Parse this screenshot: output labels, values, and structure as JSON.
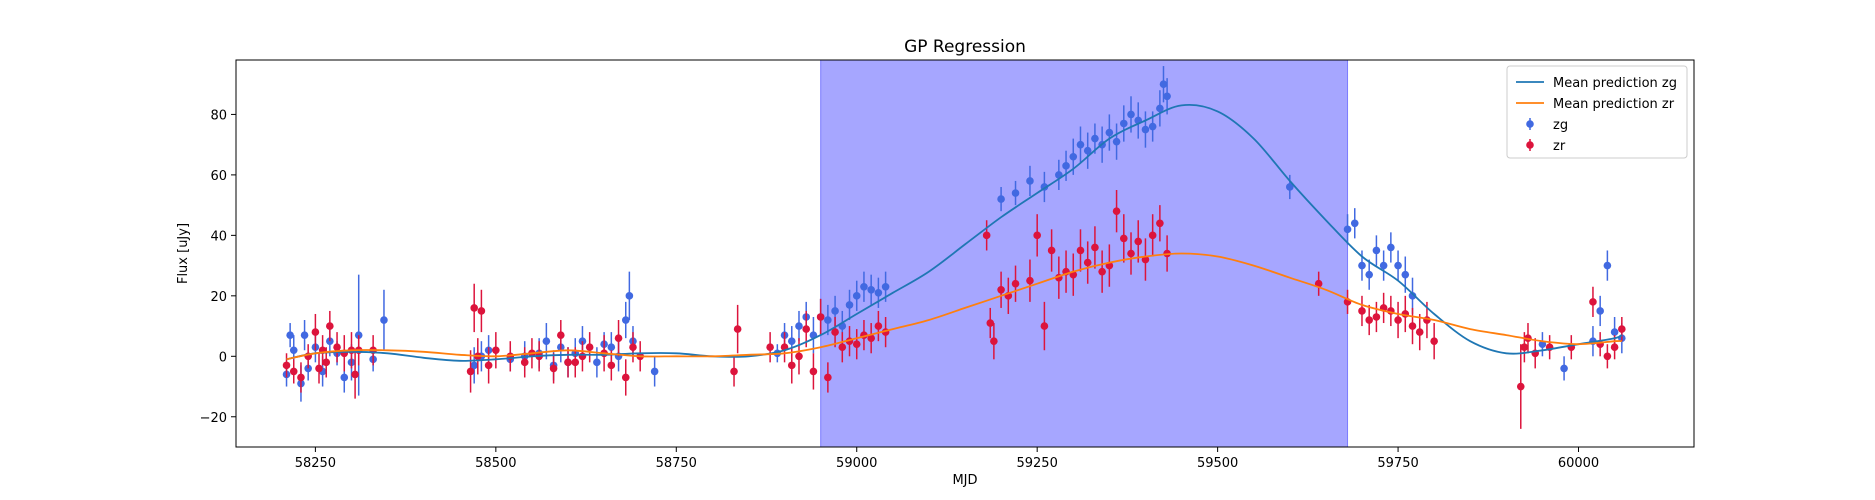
{
  "chart_data": {
    "type": "scatter",
    "title": "GP Regression",
    "xlabel": "MJD",
    "ylabel": "Flux [uJy]",
    "xlim": [
      58140,
      60160
    ],
    "ylim": [
      -30,
      98
    ],
    "xticks": [
      58250,
      58500,
      58750,
      59000,
      59250,
      59500,
      59750,
      60000
    ],
    "yticks": [
      -20,
      0,
      20,
      40,
      60,
      80
    ],
    "grid": false,
    "legend_position": "top-right",
    "legend": [
      {
        "label": "Mean prediction zg",
        "kind": "line",
        "color": "#1f77b4"
      },
      {
        "label": "Mean prediction zr",
        "kind": "line",
        "color": "#ff7f0e"
      },
      {
        "label": "zg",
        "kind": "errorbar",
        "color": "#4169e1"
      },
      {
        "label": "zr",
        "kind": "errorbar",
        "color": "#dc143c"
      }
    ],
    "shaded_region": {
      "x0": 58950,
      "x1": 59680,
      "color": "#0000ff",
      "alpha": 0.35
    },
    "series": [
      {
        "name": "Mean prediction zg",
        "kind": "line",
        "color": "#1f77b4",
        "x": [
          58210,
          58250,
          58300,
          58350,
          58400,
          58450,
          58500,
          58550,
          58600,
          58650,
          58700,
          58750,
          58800,
          58850,
          58900,
          58950,
          59000,
          59050,
          59100,
          59150,
          59200,
          59250,
          59300,
          59350,
          59400,
          59450,
          59500,
          59550,
          59600,
          59650,
          59700,
          59750,
          59800,
          59850,
          59900,
          59950,
          60000,
          60050,
          60060
        ],
        "y": [
          -1,
          1,
          1.5,
          1,
          -0.5,
          -1.5,
          -1,
          0,
          0.5,
          0.5,
          1,
          1,
          0,
          0,
          2,
          7,
          14,
          21,
          28,
          37,
          46,
          54,
          62,
          72,
          78,
          83,
          81,
          72,
          58,
          45,
          33,
          25,
          14,
          5,
          1,
          2,
          4,
          6,
          7
        ]
      },
      {
        "name": "Mean prediction zr",
        "kind": "line",
        "color": "#ff7f0e",
        "x": [
          58210,
          58250,
          58300,
          58350,
          58400,
          58450,
          58500,
          58550,
          58600,
          58650,
          58700,
          58750,
          58800,
          58850,
          58900,
          58950,
          59000,
          59050,
          59100,
          59150,
          59200,
          59250,
          59300,
          59350,
          59400,
          59450,
          59500,
          59550,
          59600,
          59650,
          59700,
          59750,
          59800,
          59850,
          59900,
          59950,
          60000,
          60050,
          60060
        ],
        "y": [
          -1,
          1,
          2,
          2,
          1.5,
          0.5,
          0,
          1,
          2,
          1,
          0,
          0,
          0,
          0.5,
          1,
          3,
          6,
          9,
          12,
          16,
          20,
          24,
          28,
          31,
          33,
          34,
          33,
          30,
          26,
          22,
          17,
          14,
          12,
          9,
          7,
          5,
          4,
          5,
          5
        ]
      },
      {
        "name": "zg",
        "kind": "errorbar",
        "color": "#4169e1",
        "x": [
          58210,
          58215,
          58220,
          58230,
          58235,
          58240,
          58250,
          58260,
          58270,
          58280,
          58290,
          58300,
          58310,
          58330,
          58345,
          58470,
          58480,
          58490,
          58520,
          58540,
          58560,
          58570,
          58580,
          58590,
          58600,
          58610,
          58620,
          58640,
          58650,
          58660,
          58670,
          58680,
          58685,
          58690,
          58720,
          58890,
          58900,
          58910,
          58920,
          58930,
          58940,
          58950,
          58960,
          58970,
          58980,
          58990,
          59000,
          59010,
          59020,
          59030,
          59040,
          59200,
          59220,
          59240,
          59260,
          59280,
          59290,
          59300,
          59310,
          59320,
          59330,
          59340,
          59350,
          59360,
          59370,
          59380,
          59390,
          59400,
          59410,
          59420,
          59425,
          59430,
          59600,
          59680,
          59690,
          59700,
          59710,
          59720,
          59730,
          59740,
          59750,
          59760,
          59770,
          59950,
          59980,
          60020,
          60030,
          60040,
          60050,
          60060
        ],
        "y": [
          -6,
          7,
          2,
          -9,
          7,
          -4,
          3,
          -5,
          5,
          1,
          -7,
          -2,
          7,
          -1,
          12,
          -3,
          0,
          2,
          -1,
          0,
          1,
          5,
          -3,
          3,
          -2,
          1,
          5,
          -2,
          4,
          3,
          0,
          12,
          20,
          5,
          -5,
          1,
          7,
          5,
          10,
          13,
          7,
          13,
          12,
          15,
          10,
          17,
          20,
          23,
          22,
          21,
          23,
          52,
          54,
          58,
          56,
          60,
          63,
          66,
          70,
          68,
          72,
          70,
          74,
          71,
          77,
          80,
          78,
          75,
          76,
          82,
          90,
          86,
          56,
          42,
          44,
          30,
          27,
          35,
          30,
          36,
          30,
          27,
          20,
          4,
          -4,
          5,
          15,
          30,
          8,
          6
        ],
        "err": [
          4,
          4,
          5,
          6,
          5,
          4,
          5,
          5,
          5,
          4,
          5,
          6,
          20,
          4,
          10,
          6,
          5,
          5,
          4,
          5,
          5,
          6,
          5,
          5,
          5,
          5,
          5,
          5,
          4,
          5,
          5,
          6,
          8,
          5,
          5,
          3,
          4,
          5,
          5,
          5,
          6,
          6,
          5,
          5,
          5,
          5,
          5,
          5,
          5,
          5,
          5,
          4,
          4,
          5,
          5,
          5,
          5,
          6,
          6,
          6,
          5,
          6,
          6,
          6,
          6,
          6,
          6,
          6,
          5,
          6,
          6,
          6,
          4,
          5,
          5,
          5,
          5,
          5,
          5,
          5,
          5,
          6,
          6,
          4,
          4,
          5,
          5,
          5,
          5,
          5
        ]
      },
      {
        "name": "zr",
        "kind": "errorbar",
        "color": "#dc143c",
        "x": [
          58210,
          58220,
          58230,
          58240,
          58250,
          58255,
          58260,
          58265,
          58270,
          58280,
          58290,
          58300,
          58305,
          58310,
          58330,
          58465,
          58470,
          58475,
          58480,
          58490,
          58500,
          58520,
          58540,
          58550,
          58560,
          58580,
          58590,
          58600,
          58610,
          58620,
          58630,
          58650,
          58660,
          58670,
          58680,
          58690,
          58700,
          58830,
          58835,
          58880,
          58900,
          58910,
          58920,
          58930,
          58940,
          58950,
          58960,
          58970,
          58980,
          58990,
          59000,
          59010,
          59020,
          59030,
          59040,
          59180,
          59185,
          59190,
          59200,
          59210,
          59220,
          59240,
          59250,
          59260,
          59270,
          59280,
          59290,
          59300,
          59310,
          59320,
          59330,
          59340,
          59350,
          59360,
          59370,
          59380,
          59390,
          59400,
          59410,
          59420,
          59430,
          59640,
          59680,
          59700,
          59710,
          59720,
          59730,
          59740,
          59750,
          59760,
          59770,
          59780,
          59790,
          59800,
          59920,
          59925,
          59930,
          59940,
          59960,
          59990,
          60020,
          60030,
          60040,
          60050,
          60060
        ],
        "y": [
          -3,
          -5,
          -7,
          0,
          8,
          -4,
          2,
          -2,
          10,
          3,
          1,
          2,
          -6,
          2,
          2,
          -5,
          16,
          0,
          15,
          -3,
          2,
          0,
          -2,
          1,
          0,
          -4,
          7,
          -2,
          -2,
          0,
          3,
          1,
          -3,
          6,
          -7,
          3,
          0,
          -5,
          9,
          3,
          3,
          -3,
          0,
          9,
          -5,
          13,
          -7,
          8,
          3,
          5,
          4,
          7,
          6,
          10,
          8,
          40,
          11,
          5,
          22,
          20,
          24,
          25,
          40,
          10,
          35,
          26,
          28,
          27,
          35,
          31,
          36,
          28,
          30,
          48,
          39,
          34,
          38,
          32,
          40,
          44,
          34,
          24,
          18,
          15,
          12,
          13,
          16,
          15,
          12,
          14,
          10,
          8,
          12,
          5,
          -10,
          3,
          6,
          1,
          3,
          3,
          18,
          4,
          0,
          3,
          9
        ],
        "err": [
          4,
          4,
          5,
          4,
          6,
          5,
          5,
          5,
          5,
          5,
          6,
          6,
          8,
          5,
          5,
          7,
          8,
          6,
          7,
          6,
          6,
          5,
          5,
          5,
          5,
          5,
          5,
          5,
          5,
          5,
          5,
          6,
          5,
          6,
          6,
          5,
          5,
          5,
          8,
          5,
          5,
          6,
          6,
          6,
          6,
          6,
          5,
          5,
          5,
          5,
          5,
          5,
          5,
          5,
          5,
          5,
          5,
          6,
          6,
          6,
          6,
          7,
          7,
          8,
          7,
          7,
          7,
          7,
          7,
          7,
          7,
          7,
          7,
          7,
          8,
          7,
          7,
          7,
          7,
          6,
          6,
          4,
          4,
          5,
          5,
          5,
          5,
          5,
          6,
          6,
          6,
          6,
          6,
          6,
          14,
          5,
          5,
          5,
          4,
          4,
          5,
          4,
          4,
          4,
          4
        ]
      }
    ]
  }
}
